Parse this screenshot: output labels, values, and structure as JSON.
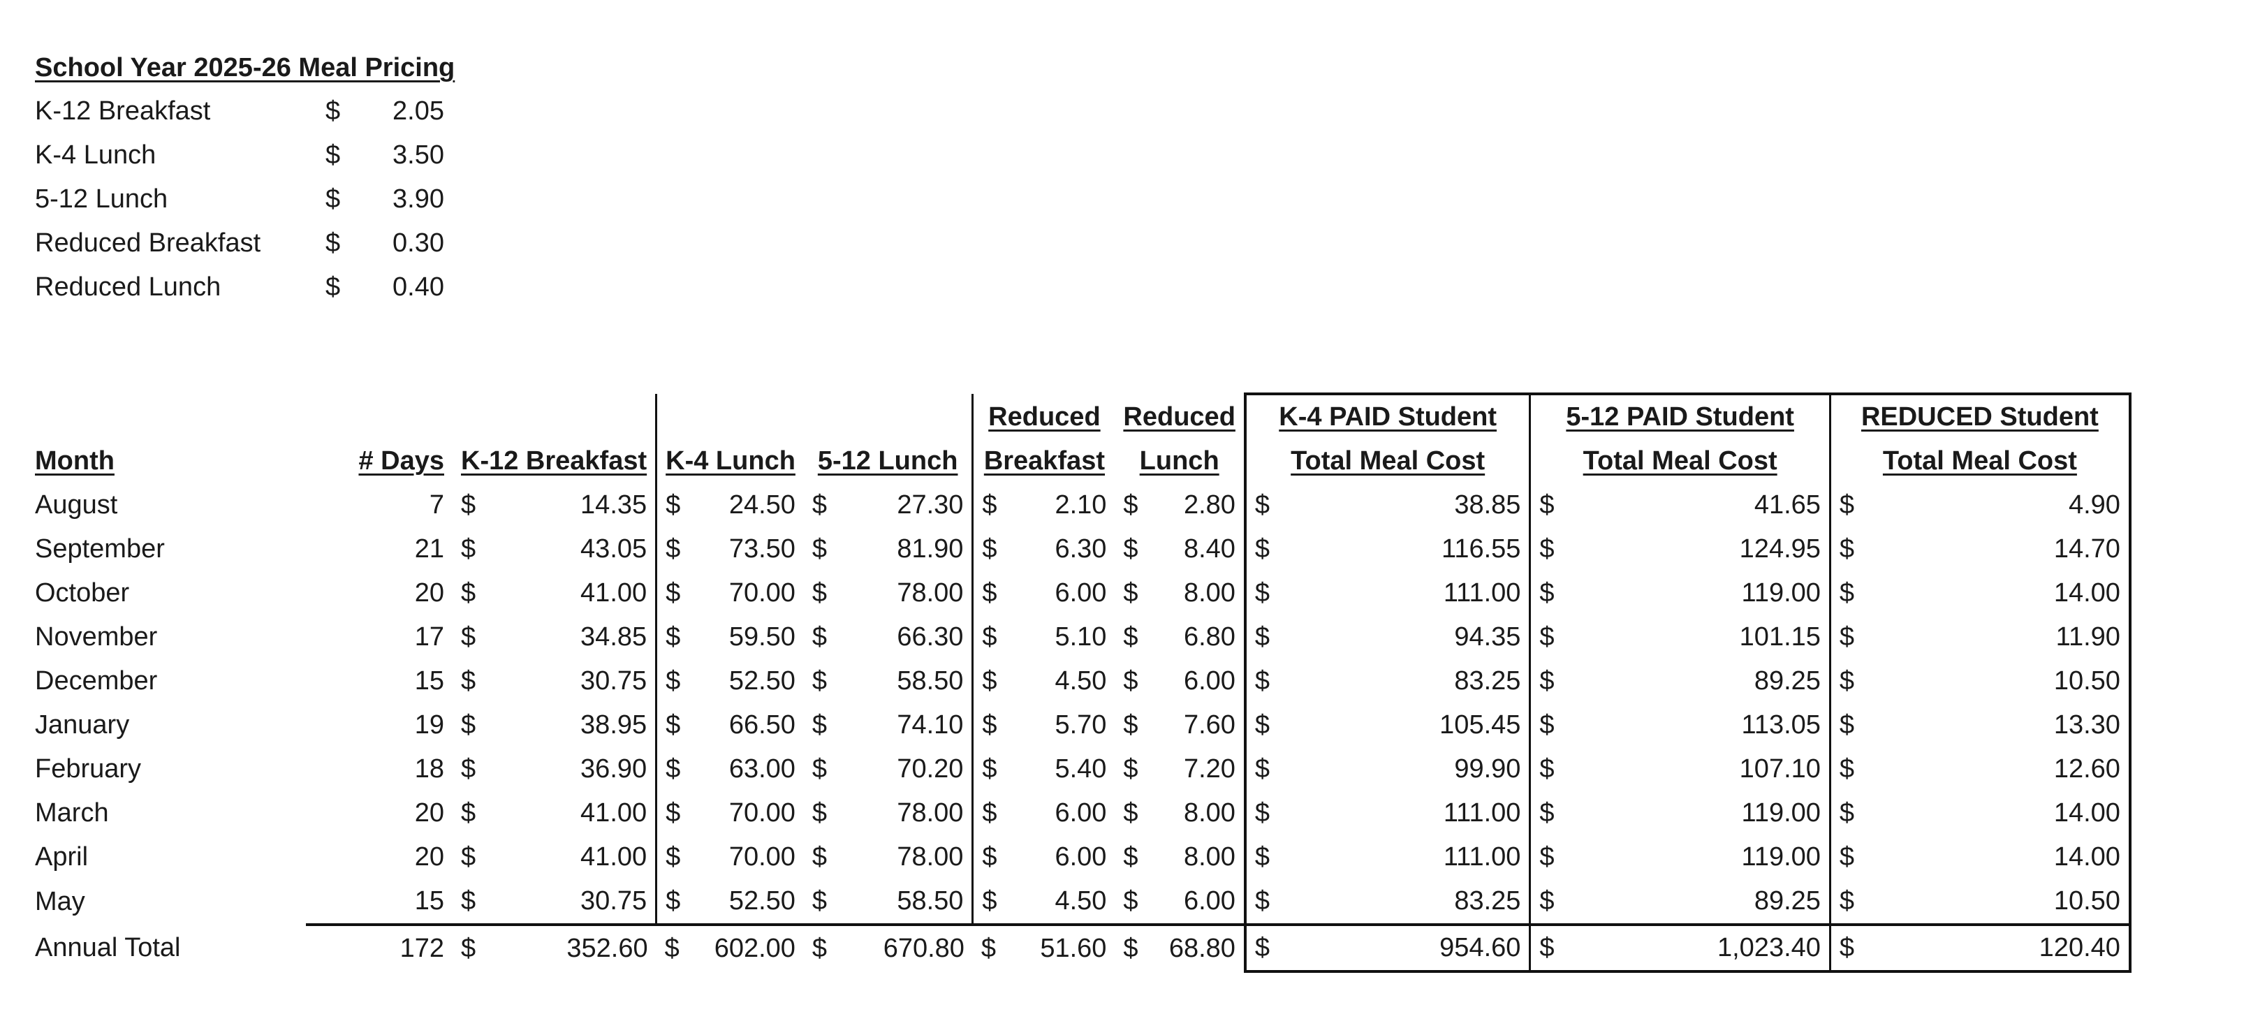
{
  "pricing": {
    "title": "School Year 2025-26 Meal Pricing",
    "items": [
      {
        "label": "K-12 Breakfast",
        "currency": "$",
        "price": "2.05"
      },
      {
        "label": "K-4 Lunch",
        "currency": "$",
        "price": "3.50"
      },
      {
        "label": "5-12 Lunch",
        "currency": "$",
        "price": "3.90"
      },
      {
        "label": "Reduced Breakfast",
        "currency": "$",
        "price": "0.30"
      },
      {
        "label": "Reduced Lunch",
        "currency": "$",
        "price": "0.40"
      }
    ]
  },
  "table": {
    "headers": {
      "month": "Month",
      "days": "# Days",
      "k12_breakfast": "K-12 Breakfast",
      "k4_lunch": "K-4 Lunch",
      "g512_lunch": "5-12 Lunch",
      "reduced_breakfast_1": "Reduced",
      "reduced_breakfast_2": "Breakfast",
      "reduced_lunch_1": "Reduced",
      "reduced_lunch_2": "Lunch",
      "k4_paid_1": "K-4 PAID Student",
      "k4_paid_2": "Total Meal Cost",
      "g512_paid_1": "5-12 PAID Student",
      "g512_paid_2": "Total Meal Cost",
      "reduced_total_1": "REDUCED Student",
      "reduced_total_2": "Total Meal Cost"
    },
    "currency": "$",
    "rows": [
      {
        "month": "August",
        "days": "7",
        "k12b": "14.35",
        "k4l": "24.50",
        "l512": "27.30",
        "rb": "2.10",
        "rl": "2.80",
        "k4t": "38.85",
        "t512": "41.65",
        "rt": "4.90"
      },
      {
        "month": "September",
        "days": "21",
        "k12b": "43.05",
        "k4l": "73.50",
        "l512": "81.90",
        "rb": "6.30",
        "rl": "8.40",
        "k4t": "116.55",
        "t512": "124.95",
        "rt": "14.70"
      },
      {
        "month": "October",
        "days": "20",
        "k12b": "41.00",
        "k4l": "70.00",
        "l512": "78.00",
        "rb": "6.00",
        "rl": "8.00",
        "k4t": "111.00",
        "t512": "119.00",
        "rt": "14.00"
      },
      {
        "month": "November",
        "days": "17",
        "k12b": "34.85",
        "k4l": "59.50",
        "l512": "66.30",
        "rb": "5.10",
        "rl": "6.80",
        "k4t": "94.35",
        "t512": "101.15",
        "rt": "11.90"
      },
      {
        "month": "December",
        "days": "15",
        "k12b": "30.75",
        "k4l": "52.50",
        "l512": "58.50",
        "rb": "4.50",
        "rl": "6.00",
        "k4t": "83.25",
        "t512": "89.25",
        "rt": "10.50"
      },
      {
        "month": "January",
        "days": "19",
        "k12b": "38.95",
        "k4l": "66.50",
        "l512": "74.10",
        "rb": "5.70",
        "rl": "7.60",
        "k4t": "105.45",
        "t512": "113.05",
        "rt": "13.30"
      },
      {
        "month": "February",
        "days": "18",
        "k12b": "36.90",
        "k4l": "63.00",
        "l512": "70.20",
        "rb": "5.40",
        "rl": "7.20",
        "k4t": "99.90",
        "t512": "107.10",
        "rt": "12.60"
      },
      {
        "month": "March",
        "days": "20",
        "k12b": "41.00",
        "k4l": "70.00",
        "l512": "78.00",
        "rb": "6.00",
        "rl": "8.00",
        "k4t": "111.00",
        "t512": "119.00",
        "rt": "14.00"
      },
      {
        "month": "April",
        "days": "20",
        "k12b": "41.00",
        "k4l": "70.00",
        "l512": "78.00",
        "rb": "6.00",
        "rl": "8.00",
        "k4t": "111.00",
        "t512": "119.00",
        "rt": "14.00"
      },
      {
        "month": "May",
        "days": "15",
        "k12b": "30.75",
        "k4l": "52.50",
        "l512": "58.50",
        "rb": "4.50",
        "rl": "6.00",
        "k4t": "83.25",
        "t512": "89.25",
        "rt": "10.50"
      }
    ],
    "total": {
      "month": "Annual Total",
      "days": "172",
      "k12b": "352.60",
      "k4l": "602.00",
      "l512": "670.80",
      "rb": "51.60",
      "rl": "68.80",
      "k4t": "954.60",
      "t512": "1,023.40",
      "rt": "120.40"
    }
  }
}
